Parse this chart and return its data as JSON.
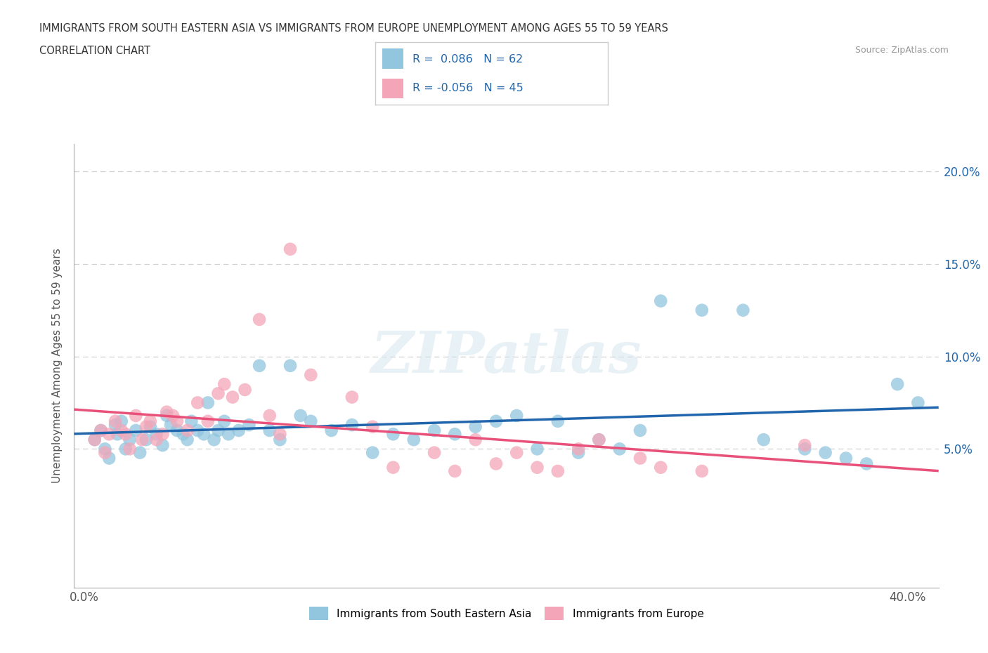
{
  "title_line1": "IMMIGRANTS FROM SOUTH EASTERN ASIA VS IMMIGRANTS FROM EUROPE UNEMPLOYMENT AMONG AGES 55 TO 59 YEARS",
  "title_line2": "CORRELATION CHART",
  "source_text": "Source: ZipAtlas.com",
  "ylabel": "Unemployment Among Ages 55 to 59 years",
  "xlim": [
    -0.005,
    0.415
  ],
  "ylim": [
    -0.025,
    0.215
  ],
  "xticks": [
    0.0,
    0.05,
    0.1,
    0.15,
    0.2,
    0.25,
    0.3,
    0.35,
    0.4
  ],
  "xticklabels": [
    "0.0%",
    "",
    "",
    "",
    "",
    "",
    "",
    "",
    "40.0%"
  ],
  "yticks": [
    0.05,
    0.1,
    0.15,
    0.2
  ],
  "yticklabels": [
    "5.0%",
    "10.0%",
    "15.0%",
    "20.0%"
  ],
  "hlines": [
    0.05,
    0.1,
    0.15,
    0.2
  ],
  "blue_color": "#92c5de",
  "pink_color": "#f4a6b8",
  "blue_line_color": "#2166ac",
  "pink_line_color": "#e8527a",
  "legend_R_blue": "0.086",
  "legend_N_blue": "62",
  "legend_R_pink": "-0.056",
  "legend_N_pink": "45",
  "legend_label_blue": "Immigrants from South Eastern Asia",
  "legend_label_pink": "Immigrants from Europe",
  "watermark": "ZIPatlas",
  "blue_scatter_x": [
    0.005,
    0.008,
    0.01,
    0.012,
    0.015,
    0.016,
    0.018,
    0.02,
    0.022,
    0.025,
    0.027,
    0.03,
    0.032,
    0.035,
    0.038,
    0.04,
    0.042,
    0.045,
    0.048,
    0.05,
    0.052,
    0.055,
    0.058,
    0.06,
    0.063,
    0.065,
    0.068,
    0.07,
    0.075,
    0.08,
    0.085,
    0.09,
    0.095,
    0.1,
    0.105,
    0.11,
    0.12,
    0.13,
    0.14,
    0.15,
    0.16,
    0.17,
    0.18,
    0.19,
    0.2,
    0.21,
    0.22,
    0.23,
    0.24,
    0.25,
    0.26,
    0.27,
    0.28,
    0.3,
    0.32,
    0.33,
    0.35,
    0.36,
    0.37,
    0.38,
    0.395,
    0.405
  ],
  "blue_scatter_y": [
    0.055,
    0.06,
    0.05,
    0.045,
    0.063,
    0.058,
    0.065,
    0.05,
    0.055,
    0.06,
    0.048,
    0.055,
    0.062,
    0.058,
    0.052,
    0.068,
    0.063,
    0.06,
    0.058,
    0.055,
    0.065,
    0.06,
    0.058,
    0.075,
    0.055,
    0.06,
    0.065,
    0.058,
    0.06,
    0.063,
    0.095,
    0.06,
    0.055,
    0.095,
    0.068,
    0.065,
    0.06,
    0.063,
    0.048,
    0.058,
    0.055,
    0.06,
    0.058,
    0.062,
    0.065,
    0.068,
    0.05,
    0.065,
    0.048,
    0.055,
    0.05,
    0.06,
    0.13,
    0.125,
    0.125,
    0.055,
    0.05,
    0.048,
    0.045,
    0.042,
    0.085,
    0.075
  ],
  "pink_scatter_x": [
    0.005,
    0.008,
    0.01,
    0.012,
    0.015,
    0.018,
    0.02,
    0.022,
    0.025,
    0.028,
    0.03,
    0.032,
    0.035,
    0.038,
    0.04,
    0.043,
    0.045,
    0.05,
    0.055,
    0.06,
    0.065,
    0.068,
    0.072,
    0.078,
    0.085,
    0.09,
    0.095,
    0.1,
    0.11,
    0.13,
    0.14,
    0.15,
    0.17,
    0.18,
    0.19,
    0.2,
    0.21,
    0.22,
    0.23,
    0.24,
    0.25,
    0.27,
    0.28,
    0.3,
    0.35
  ],
  "pink_scatter_y": [
    0.055,
    0.06,
    0.048,
    0.058,
    0.065,
    0.06,
    0.058,
    0.05,
    0.068,
    0.055,
    0.062,
    0.065,
    0.055,
    0.058,
    0.07,
    0.068,
    0.065,
    0.06,
    0.075,
    0.065,
    0.08,
    0.085,
    0.078,
    0.082,
    0.12,
    0.068,
    0.058,
    0.158,
    0.09,
    0.078,
    0.062,
    0.04,
    0.048,
    0.038,
    0.055,
    0.042,
    0.048,
    0.04,
    0.038,
    0.05,
    0.055,
    0.045,
    0.04,
    0.038,
    0.052
  ],
  "background_color": "#ffffff",
  "grid_color": "#d0d0d0"
}
